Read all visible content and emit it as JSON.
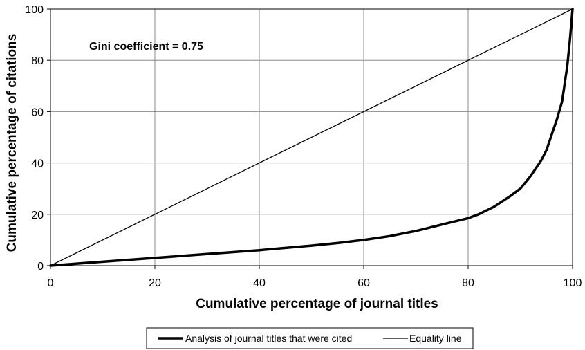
{
  "chart_data": {
    "type": "line",
    "xlabel": "Cumulative percentage of journal titles",
    "ylabel": "Cumulative percentage of citations",
    "xlim": [
      0,
      100
    ],
    "ylim": [
      0,
      100
    ],
    "xticks": [
      0,
      20,
      40,
      60,
      80,
      100
    ],
    "yticks": [
      0,
      20,
      40,
      60,
      80,
      100
    ],
    "grid": true,
    "legend_position": "bottom",
    "annotation": "Gini coefficient = 0.75",
    "series": [
      {
        "name": "Analysis of journal titles that were cited",
        "color": "#000000",
        "style": "thick",
        "x": [
          0,
          10,
          20,
          30,
          40,
          50,
          55,
          60,
          65,
          70,
          75,
          80,
          82,
          85,
          88,
          90,
          92,
          94,
          95,
          96,
          97,
          98,
          99,
          99.5,
          100
        ],
        "y": [
          0,
          1.5,
          3,
          4.5,
          6,
          7.8,
          8.8,
          10,
          11.5,
          13.5,
          16,
          18.5,
          20,
          23,
          27,
          30,
          35,
          41,
          45,
          51,
          57,
          64,
          78,
          88,
          100
        ]
      },
      {
        "name": "Equality line",
        "color": "#000000",
        "style": "thin",
        "x": [
          0,
          100
        ],
        "y": [
          0,
          100
        ]
      }
    ]
  }
}
